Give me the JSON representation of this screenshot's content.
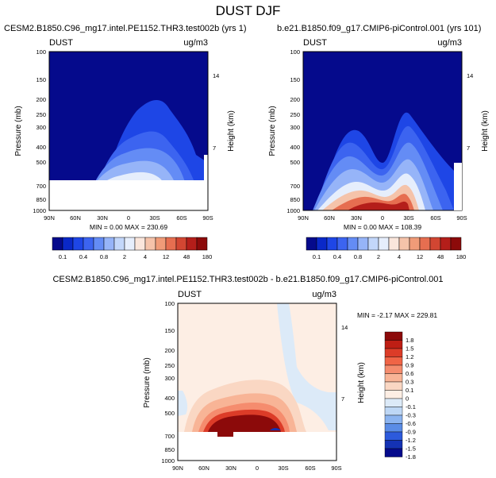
{
  "page_title": "DUST DJF",
  "chart_data": [
    {
      "type": "heatmap",
      "id": "panel-left",
      "title": "CESM2.B1850.C96_mg17.intel.PE1152.THR3.test002b (yrs 1)",
      "left_label": "DUST",
      "units": "ug/m3",
      "ylabel": "Pressure (mb)",
      "y2label": "Height (km)",
      "x_ticks": [
        "90N",
        "60N",
        "30N",
        "0",
        "30S",
        "60S",
        "90S"
      ],
      "y_ticks": [
        "100",
        "150",
        "200",
        "250",
        "300",
        "400",
        "500",
        "700",
        "850",
        "1000"
      ],
      "y2_ticks": [
        "14",
        "7"
      ],
      "stats": "MIN =   0.00  MAX = 230.69",
      "min": 0.0,
      "max": 230.69,
      "colorbar_labels": [
        "0.1",
        "0.4",
        "0.8",
        "2",
        "4",
        "12",
        "48",
        "180"
      ]
    },
    {
      "type": "heatmap",
      "id": "panel-right",
      "title": "b.e21.B1850.f09_g17.CMIP6-piControl.001 (yrs 101)",
      "left_label": "DUST",
      "units": "ug/m3",
      "ylabel": "Pressure (mb)",
      "y2label": "Height (km)",
      "x_ticks": [
        "90N",
        "60N",
        "30N",
        "0",
        "30S",
        "60S",
        "90S"
      ],
      "y_ticks": [
        "100",
        "150",
        "200",
        "250",
        "300",
        "400",
        "500",
        "700",
        "850",
        "1000"
      ],
      "y2_ticks": [
        "14",
        "7"
      ],
      "stats": "MIN =   0.00  MAX = 108.39",
      "min": 0.0,
      "max": 108.39,
      "colorbar_labels": [
        "0.1",
        "0.4",
        "0.8",
        "2",
        "4",
        "12",
        "48",
        "180"
      ]
    },
    {
      "type": "heatmap",
      "id": "panel-diff",
      "title": "CESM2.B1850.C96_mg17.intel.PE1152.THR3.test002b - b.e21.B1850.f09_g17.CMIP6-piControl.001",
      "left_label": "DUST",
      "units": "ug/m3",
      "ylabel": "Pressure (mb)",
      "y2label": "Height (km)",
      "x_ticks": [
        "90N",
        "60N",
        "30N",
        "0",
        "30S",
        "60S",
        "90S"
      ],
      "y_ticks": [
        "100",
        "150",
        "200",
        "250",
        "300",
        "400",
        "500",
        "700",
        "850",
        "1000"
      ],
      "y2_ticks": [
        "14",
        "7"
      ],
      "stats": "MIN =  -2.17  MAX = 229.81",
      "min": -2.17,
      "max": 229.81,
      "colorbar_labels": [
        "1.8",
        "1.5",
        "1.2",
        "0.9",
        "0.6",
        "0.3",
        "0.1",
        "0",
        "-0.1",
        "-0.3",
        "-0.6",
        "-0.9",
        "-1.2",
        "-1.5",
        "-1.8"
      ]
    }
  ],
  "colors": {
    "seq": [
      "#050a8c",
      "#0a28c8",
      "#1e46e6",
      "#3c64f0",
      "#648cf5",
      "#96b4f8",
      "#c3d7fa",
      "#e6eefc",
      "#fae6dc",
      "#f5c3aa",
      "#f09b78",
      "#e66e50",
      "#d24632",
      "#b41e1a",
      "#8c0a0a"
    ],
    "div": [
      "#8c0a0a",
      "#be1e14",
      "#dc3c28",
      "#f06446",
      "#f58c6e",
      "#f8b496",
      "#fad7c3",
      "#fdeee4",
      "#dceaf8",
      "#bed7f5",
      "#8cb4f0",
      "#5a8ce6",
      "#2d5adc",
      "#1432b4",
      "#050a8c"
    ]
  }
}
